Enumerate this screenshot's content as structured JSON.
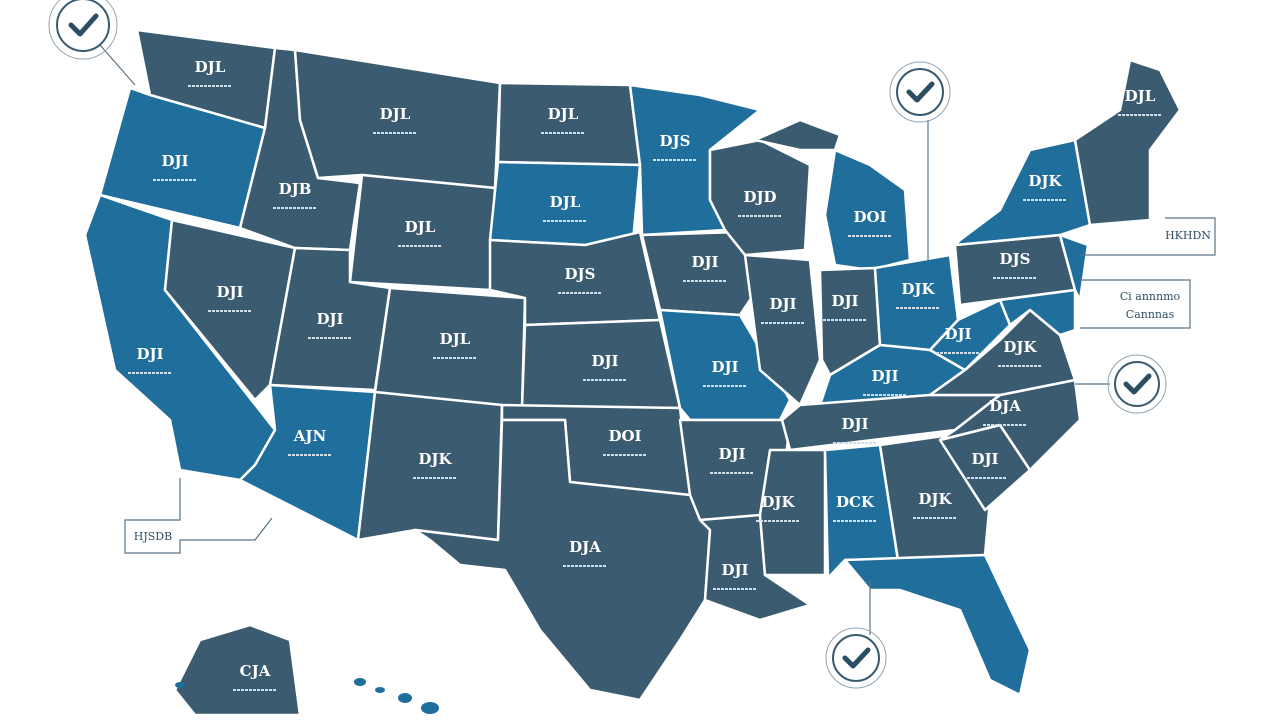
{
  "map": {
    "labels": [
      "DJL",
      "DJL",
      "DJL",
      "DJS",
      "DJI",
      "DJB",
      "DJL",
      "DJL",
      "DJD",
      "DOI",
      "DJK",
      "DJL",
      "DJI",
      "DJI",
      "DJL",
      "DJS",
      "DJI",
      "DJI",
      "DJI",
      "DJK",
      "DJS",
      "DJI",
      "DJI",
      "DJI",
      "DJI",
      "DJI",
      "DJK",
      "AJN",
      "DJK",
      "DOI",
      "DJI",
      "DJI",
      "DJA",
      "DJK",
      "DCK",
      "DJK",
      "DJI",
      "DJA",
      "DJI",
      "CJA"
    ],
    "callouts": [
      "HJSDB",
      "HKHDN",
      "Ci annnmo",
      "Cannnas"
    ]
  }
}
